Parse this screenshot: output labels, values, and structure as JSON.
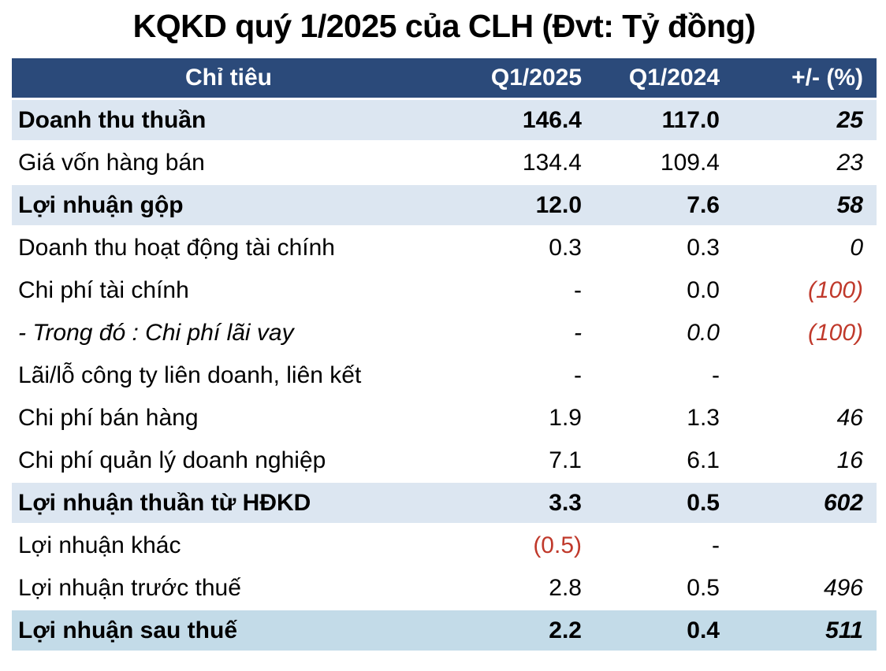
{
  "chart_data": {
    "type": "table",
    "title": "KQKD quý 1/2025 của CLH (Đvt: Tỷ đồng)",
    "columns": [
      "Chỉ tiêu",
      "Q1/2025",
      "Q1/2024",
      "+/- (%)"
    ],
    "rows": [
      [
        "Doanh thu thuần",
        "146.4",
        "117.0",
        "25"
      ],
      [
        "Giá vốn hàng bán",
        "134.4",
        "109.4",
        "23"
      ],
      [
        "Lợi nhuận gộp",
        "12.0",
        "7.6",
        "58"
      ],
      [
        "Doanh thu hoạt động tài chính",
        "0.3",
        "0.3",
        "0"
      ],
      [
        "Chi phí tài chính",
        "-",
        "0.0",
        "(100)"
      ],
      [
        "- Trong đó : Chi phí lãi vay",
        "-",
        "0.0",
        "(100)"
      ],
      [
        "Lãi/lỗ công ty liên doanh, liên kết",
        "-",
        "-",
        ""
      ],
      [
        "Chi phí bán hàng",
        "1.9",
        "1.3",
        "46"
      ],
      [
        "Chi phí quản lý doanh nghiệp",
        "7.1",
        "6.1",
        "16"
      ],
      [
        "Lợi nhuận thuần từ HĐKD",
        "3.3",
        "0.5",
        "602"
      ],
      [
        "Lợi nhuận khác",
        "(0.5)",
        "-",
        ""
      ],
      [
        "Lợi nhuận trước thuế",
        "2.8",
        "0.5",
        "496"
      ],
      [
        "Lợi nhuận sau thuế",
        "2.2",
        "0.4",
        "511"
      ]
    ]
  },
  "colors": {
    "header_bg": "#2b4a7a",
    "header_text": "#ffffff",
    "highlight_row_bg": "#dce6f1",
    "total_row_bg": "#c3dbe8",
    "negative_value": "#c0392b",
    "body_text": "#000000"
  }
}
